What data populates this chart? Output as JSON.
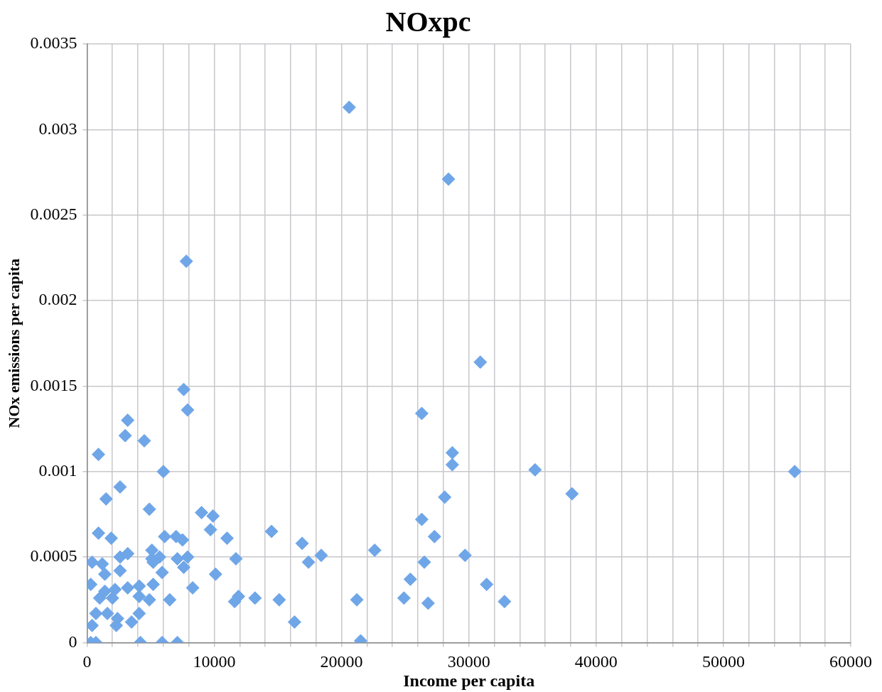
{
  "chart_data": {
    "type": "scatter",
    "title": "NOxpc",
    "xlabel": "Income per capita",
    "ylabel": "NOx emissions per capita",
    "xlim": [
      0,
      60000
    ],
    "ylim": [
      0,
      0.0035
    ],
    "xticks": [
      0,
      {
        "value": 2000,
        "label": null
      },
      {
        "value": 4000,
        "label": null
      },
      {
        "value": 6000,
        "label": null
      },
      {
        "value": 8000,
        "label": null
      },
      10000,
      {
        "value": 12000,
        "label": null
      },
      {
        "value": 14000,
        "label": null
      },
      {
        "value": 16000,
        "label": null
      },
      {
        "value": 18000,
        "label": null
      },
      20000,
      {
        "value": 22000,
        "label": null
      },
      {
        "value": 24000,
        "label": null
      },
      {
        "value": 26000,
        "label": null
      },
      {
        "value": 28000,
        "label": null
      },
      30000,
      {
        "value": 32000,
        "label": null
      },
      {
        "value": 34000,
        "label": null
      },
      {
        "value": 36000,
        "label": null
      },
      {
        "value": 38000,
        "label": null
      },
      40000,
      {
        "value": 42000,
        "label": null
      },
      {
        "value": 44000,
        "label": null
      },
      {
        "value": 46000,
        "label": null
      },
      {
        "value": 48000,
        "label": null
      },
      50000,
      {
        "value": 52000,
        "label": null
      },
      {
        "value": 54000,
        "label": null
      },
      {
        "value": 56000,
        "label": null
      },
      {
        "value": 58000,
        "label": null
      },
      60000
    ],
    "yticks": [
      0,
      0.0005,
      0.001,
      0.0015,
      0.002,
      0.0025,
      0.003,
      0.0035
    ],
    "grid": true,
    "legend": false,
    "marker": "diamond",
    "series": [
      {
        "color": "#6fa6e8",
        "x": [
          20600,
          28400,
          7800,
          30900,
          7600,
          7900,
          26300,
          3200,
          3000,
          4500,
          900,
          28700,
          28700,
          6000,
          35200,
          55600,
          38100,
          28100,
          2600,
          1500,
          4900,
          9000,
          9900,
          9700,
          14500,
          11000,
          26300,
          27300,
          900,
          1900,
          6100,
          7000,
          7500,
          16900,
          22600,
          400,
          1200,
          2600,
          3200,
          5100,
          5100,
          5700,
          5200,
          7100,
          7900,
          7600,
          11700,
          1400,
          2600,
          5900,
          10100,
          300,
          1400,
          2200,
          3200,
          4100,
          5200,
          8300,
          1000,
          2000,
          4100,
          4900,
          6500,
          11600,
          11900,
          13200,
          700,
          1600,
          2400,
          3500,
          4100,
          2300,
          400,
          300,
          700,
          4200,
          5900,
          7100,
          17400,
          18400,
          15100,
          16300,
          21200,
          21500,
          29700,
          26500,
          25400,
          24900,
          26800,
          31400,
          32800
        ],
        "values": [
          0.00313,
          0.00271,
          0.00223,
          0.00164,
          0.00148,
          0.00136,
          0.00134,
          0.0013,
          0.00121,
          0.00118,
          0.0011,
          0.00111,
          0.00104,
          0.001,
          0.00101,
          0.001,
          0.00087,
          0.00085,
          0.00091,
          0.00084,
          0.00078,
          0.00076,
          0.00074,
          0.00066,
          0.00065,
          0.00061,
          0.00072,
          0.00062,
          0.00064,
          0.00061,
          0.00062,
          0.00062,
          0.0006,
          0.00058,
          0.00054,
          0.00047,
          0.00046,
          0.0005,
          0.00052,
          0.00054,
          0.00049,
          0.0005,
          0.00047,
          0.00049,
          0.0005,
          0.00044,
          0.00049,
          0.0004,
          0.00042,
          0.00041,
          0.0004,
          0.00034,
          0.0003,
          0.00031,
          0.00032,
          0.00033,
          0.00034,
          0.00032,
          0.00026,
          0.00026,
          0.00027,
          0.00025,
          0.00025,
          0.00024,
          0.00027,
          0.00026,
          0.00017,
          0.00017,
          0.00014,
          0.00012,
          0.00017,
          0.0001,
          0.0001,
          0,
          0,
          0,
          0,
          0,
          0.00047,
          0.00051,
          0.00025,
          0.00012,
          0.00025,
          1e-05,
          0.00051,
          0.00047,
          0.00037,
          0.00026,
          0.00023,
          0.00034,
          0.00024
        ]
      }
    ]
  }
}
